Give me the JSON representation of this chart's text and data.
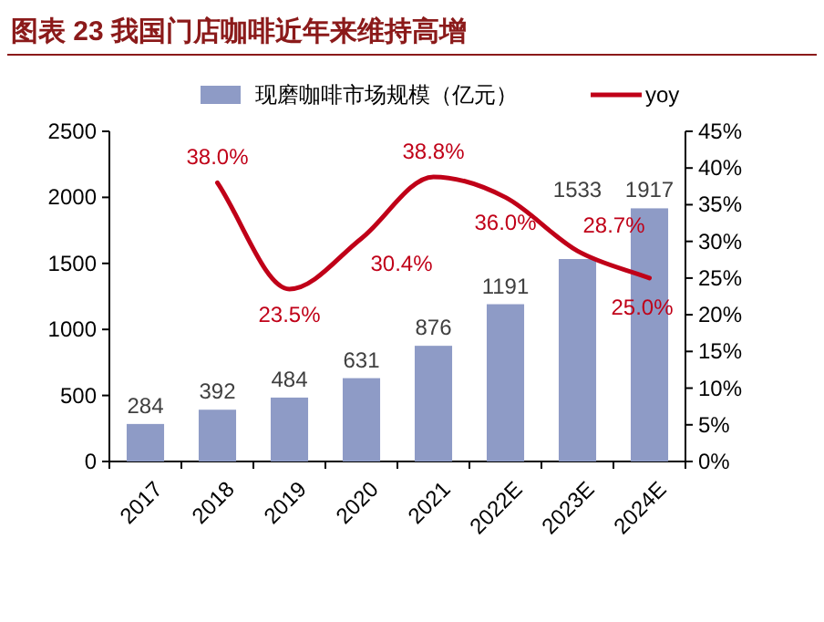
{
  "chart_data": {
    "type": "bar",
    "title": "图表 23 我国门店咖啡近年来维持高增",
    "categories": [
      "2017",
      "2018",
      "2019",
      "2020",
      "2021",
      "2022E",
      "2023E",
      "2024E"
    ],
    "series": [
      {
        "name": "现磨咖啡市场规模（亿元）",
        "color": "#8e9bc6",
        "values": [
          284,
          392,
          484,
          631,
          876,
          1191,
          1533,
          1917
        ],
        "value_labels": [
          "284",
          "392",
          "484",
          "631",
          "876",
          "1191",
          "1533",
          "1917"
        ]
      },
      {
        "name": "yoy",
        "type": "line",
        "axis": "y2",
        "color": "#c00018",
        "values": [
          null,
          38.0,
          23.5,
          30.4,
          38.8,
          36.0,
          28.7,
          25.0
        ],
        "value_labels": [
          null,
          "38.0%",
          "23.5%",
          "30.4%",
          "38.8%",
          "36.0%",
          "28.7%",
          "25.0%"
        ]
      }
    ],
    "ylim": [
      0,
      2500
    ],
    "yticks": [
      0,
      500,
      1000,
      1500,
      2000,
      2500
    ],
    "y2lim": [
      0,
      45
    ],
    "y2ticks": [
      {
        "value": 0,
        "label": "0%"
      },
      {
        "value": 5,
        "label": "5%"
      },
      {
        "value": 10,
        "label": "10%"
      },
      {
        "value": 15,
        "label": "15%"
      },
      {
        "value": 20,
        "label": "20%"
      },
      {
        "value": 25,
        "label": "25%"
      },
      {
        "value": 30,
        "label": "30%"
      },
      {
        "value": 35,
        "label": "35%"
      },
      {
        "value": 40,
        "label": "40%"
      },
      {
        "value": 45,
        "label": "45%"
      }
    ],
    "legend": "top",
    "grid": false,
    "marker": "none",
    "line_style": "solid"
  }
}
